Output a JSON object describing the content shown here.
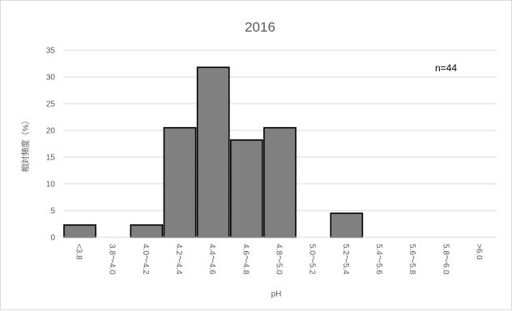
{
  "chart_data": {
    "type": "bar",
    "title": "2016",
    "xlabel": "pH",
    "ylabel": "相対頻度（%）",
    "annotation": "n=44",
    "categories": [
      "<3.8",
      "3.8～4.0",
      "4.0～4.2",
      "4.2～4.4",
      "4.4～4.6",
      "4.6～4.8",
      "4.8～5.0",
      "5.0～5.2",
      "5.2～5.4",
      "5.4～5.6",
      "5.6～5.8",
      "5.8～6.0",
      ">6.0"
    ],
    "values": [
      2.3,
      0,
      2.3,
      20.5,
      31.8,
      18.2,
      20.5,
      0,
      4.5,
      0,
      0,
      0,
      0
    ],
    "ylim": [
      0,
      35
    ],
    "yticks": [
      0,
      5,
      10,
      15,
      20,
      25,
      30,
      35
    ],
    "grid": true,
    "legend": "none",
    "colors": {
      "bar_fill": "#808080",
      "bar_stroke": "#000000",
      "grid": "#d9d9d9",
      "text": "#595959"
    }
  }
}
